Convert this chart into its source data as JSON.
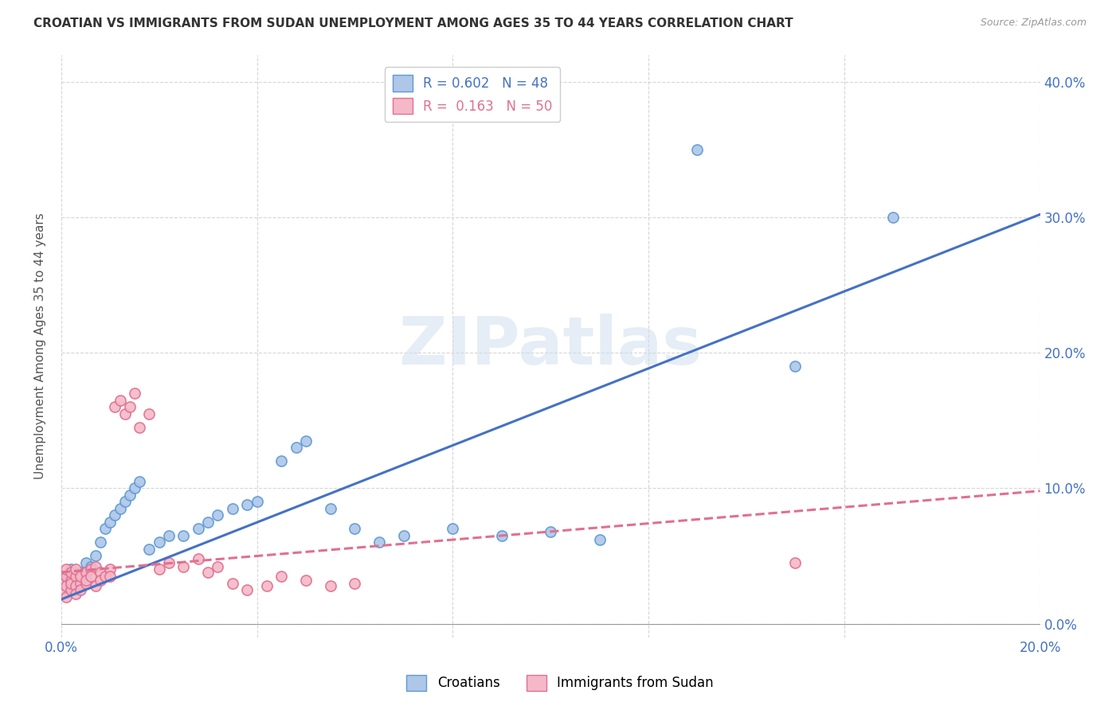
{
  "title": "CROATIAN VS IMMIGRANTS FROM SUDAN UNEMPLOYMENT AMONG AGES 35 TO 44 YEARS CORRELATION CHART",
  "source": "Source: ZipAtlas.com",
  "ylabel": "Unemployment Among Ages 35 to 44 years",
  "xlim": [
    0.0,
    0.2
  ],
  "ylim": [
    -0.01,
    0.42
  ],
  "yticks_right": [
    0.0,
    0.1,
    0.2,
    0.3,
    0.4
  ],
  "watermark": "ZIPatlas",
  "legend1_label": "R = 0.602   N = 48",
  "legend2_label": "R =  0.163   N = 50",
  "croatians_color": "#aec6e8",
  "croatians_edge_color": "#5b9bd5",
  "sudan_color": "#f4b8c8",
  "sudan_edge_color": "#e07090",
  "line_croatians_color": "#4472c4",
  "line_sudan_color": "#e07090",
  "croatians_x": [
    0.0,
    0.001,
    0.001,
    0.001,
    0.002,
    0.002,
    0.002,
    0.003,
    0.003,
    0.004,
    0.004,
    0.005,
    0.005,
    0.006,
    0.007,
    0.008,
    0.009,
    0.01,
    0.011,
    0.012,
    0.013,
    0.014,
    0.015,
    0.016,
    0.018,
    0.02,
    0.022,
    0.025,
    0.028,
    0.03,
    0.032,
    0.035,
    0.038,
    0.04,
    0.045,
    0.048,
    0.05,
    0.055,
    0.06,
    0.065,
    0.07,
    0.08,
    0.09,
    0.1,
    0.11,
    0.13,
    0.15,
    0.17
  ],
  "croatians_y": [
    0.03,
    0.035,
    0.028,
    0.032,
    0.038,
    0.025,
    0.04,
    0.035,
    0.03,
    0.038,
    0.032,
    0.045,
    0.038,
    0.042,
    0.05,
    0.06,
    0.07,
    0.075,
    0.08,
    0.085,
    0.09,
    0.095,
    0.1,
    0.105,
    0.055,
    0.06,
    0.065,
    0.065,
    0.07,
    0.075,
    0.08,
    0.085,
    0.088,
    0.09,
    0.12,
    0.13,
    0.135,
    0.085,
    0.07,
    0.06,
    0.065,
    0.07,
    0.065,
    0.068,
    0.062,
    0.35,
    0.19,
    0.3
  ],
  "sudan_x": [
    0.0,
    0.0,
    0.001,
    0.001,
    0.001,
    0.001,
    0.002,
    0.002,
    0.002,
    0.002,
    0.003,
    0.003,
    0.003,
    0.003,
    0.004,
    0.004,
    0.004,
    0.005,
    0.005,
    0.005,
    0.006,
    0.006,
    0.007,
    0.007,
    0.008,
    0.008,
    0.009,
    0.01,
    0.01,
    0.011,
    0.012,
    0.013,
    0.014,
    0.015,
    0.016,
    0.018,
    0.02,
    0.022,
    0.025,
    0.028,
    0.03,
    0.032,
    0.035,
    0.038,
    0.042,
    0.045,
    0.05,
    0.055,
    0.06,
    0.15
  ],
  "sudan_y": [
    0.03,
    0.025,
    0.035,
    0.028,
    0.04,
    0.02,
    0.032,
    0.025,
    0.038,
    0.03,
    0.035,
    0.028,
    0.022,
    0.04,
    0.03,
    0.035,
    0.025,
    0.038,
    0.03,
    0.032,
    0.04,
    0.035,
    0.028,
    0.042,
    0.038,
    0.032,
    0.035,
    0.04,
    0.035,
    0.16,
    0.165,
    0.155,
    0.16,
    0.17,
    0.145,
    0.155,
    0.04,
    0.045,
    0.042,
    0.048,
    0.038,
    0.042,
    0.03,
    0.025,
    0.028,
    0.035,
    0.032,
    0.028,
    0.03,
    0.045
  ],
  "background_color": "#ffffff",
  "grid_color": "#cccccc",
  "line_cro_x0": 0.0,
  "line_cro_y0": 0.018,
  "line_cro_x1": 0.2,
  "line_cro_y1": 0.302,
  "line_sud_x0": 0.0,
  "line_sud_y0": 0.038,
  "line_sud_x1": 0.2,
  "line_sud_y1": 0.098
}
